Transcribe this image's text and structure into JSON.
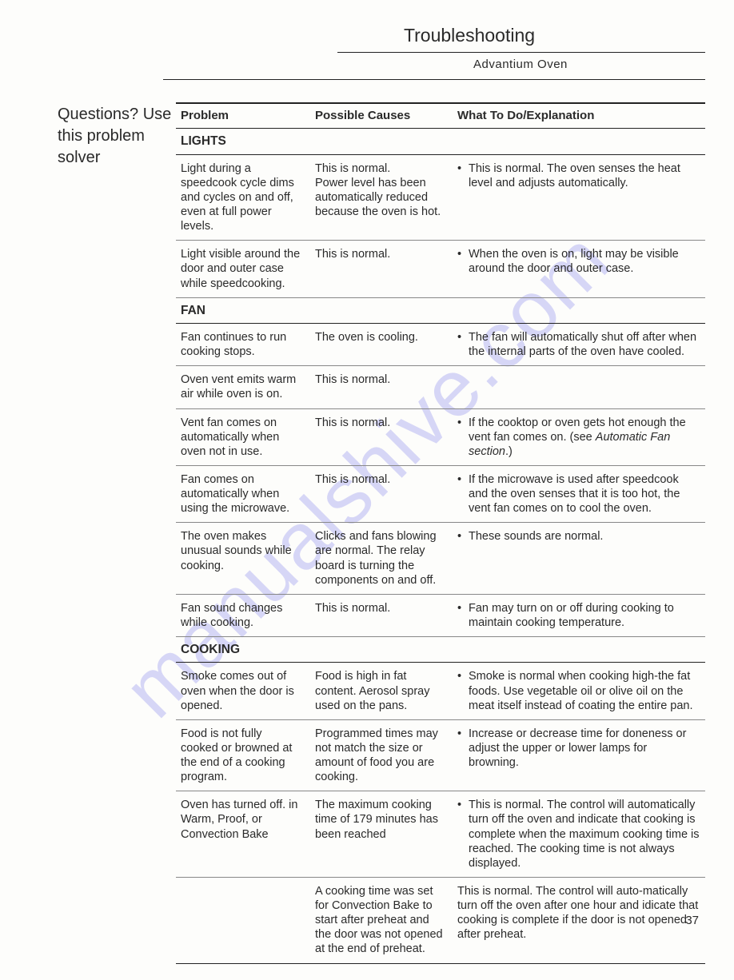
{
  "header": {
    "title": "Troubleshooting",
    "subhead": "Advantium Oven"
  },
  "sidebar": {
    "text": "Questions? Use this problem solver"
  },
  "columns": {
    "c1": "Problem",
    "c2": "Possible Causes",
    "c3": "What To Do/Explanation"
  },
  "sections": [
    {
      "heading": "LIGHTS",
      "rows": [
        {
          "problem": "Light during a speedcook cycle dims and cycles on and off, even at full power levels.",
          "cause": "This is normal.\nPower level has been automatically reduced because the oven is hot.",
          "explain": [
            "This is normal. The oven senses the heat level and adjusts automatically."
          ]
        },
        {
          "problem": "Light visible around the door and outer case while speedcooking.",
          "cause": "This is normal.",
          "explain": [
            "When the oven is on, light may be visible around the door and outer case."
          ]
        }
      ]
    },
    {
      "heading": "FAN",
      "rows": [
        {
          "problem": "Fan continues to run cooking stops.",
          "cause": "The oven is cooling.",
          "explain": [
            "The fan will automatically shut off after when the internal parts of the oven have cooled."
          ]
        },
        {
          "problem": "Oven vent emits warm air while oven is on.",
          "cause": "This is normal.",
          "explain": []
        },
        {
          "problem": "Vent fan comes on automatically when oven not in use.",
          "cause": "This is normal.",
          "explain": [
            "If the cooktop or oven gets hot enough the vent fan comes on. (see Automatic Fan section.)"
          ]
        },
        {
          "problem": "Fan comes on automatically when using the microwave.",
          "cause": "This is normal.",
          "explain": [
            "If the microwave is used after speedcook and the oven senses that it is too hot, the vent fan comes on to cool the oven."
          ]
        },
        {
          "problem": "The oven makes unusual sounds while cooking.",
          "cause": "Clicks and fans blowing are normal. The relay board is turning the components on and off.",
          "explain": [
            "These sounds are normal."
          ]
        },
        {
          "problem": "Fan sound changes while cooking.",
          "cause": "This is normal.",
          "explain": [
            "Fan may turn on or off during cooking to maintain cooking temperature."
          ]
        }
      ]
    },
    {
      "heading": "COOKING",
      "rows": [
        {
          "problem": "Smoke comes out of oven when the door is opened.",
          "cause": "Food is high in fat content. Aerosol spray used on the pans.",
          "explain": [
            "Smoke is normal when cooking high-the fat foods. Use vegetable oil or olive oil on the meat itself instead of coating the entire pan."
          ]
        },
        {
          "problem": "Food is not fully cooked or browned at the end of a cooking program.",
          "cause": "Programmed times may not match the size or amount of food you are cooking.",
          "explain": [
            "Increase or decrease time for doneness or adjust the upper or lower lamps for browning."
          ]
        },
        {
          "problem": "Oven has turned off. in Warm, Proof, or Convection Bake",
          "cause": "The maximum cooking time of 179 minutes has been reached",
          "explain": [
            "This is normal.  The control will automatically turn off the oven and indicate that cooking is complete when the maximum cooking time is reached.  The cooking time is not always displayed."
          ]
        },
        {
          "problem": "",
          "cause": "A cooking time was set for Convection Bake to start after preheat and the door was not opened at the end of preheat.",
          "explain_plain": "This is normal.  The control will auto-matically turn off the oven after one hour and idicate that cooking is complete if the door is not opened after preheat."
        }
      ]
    }
  ],
  "watermark": "manualshive.com",
  "page_number": "37"
}
